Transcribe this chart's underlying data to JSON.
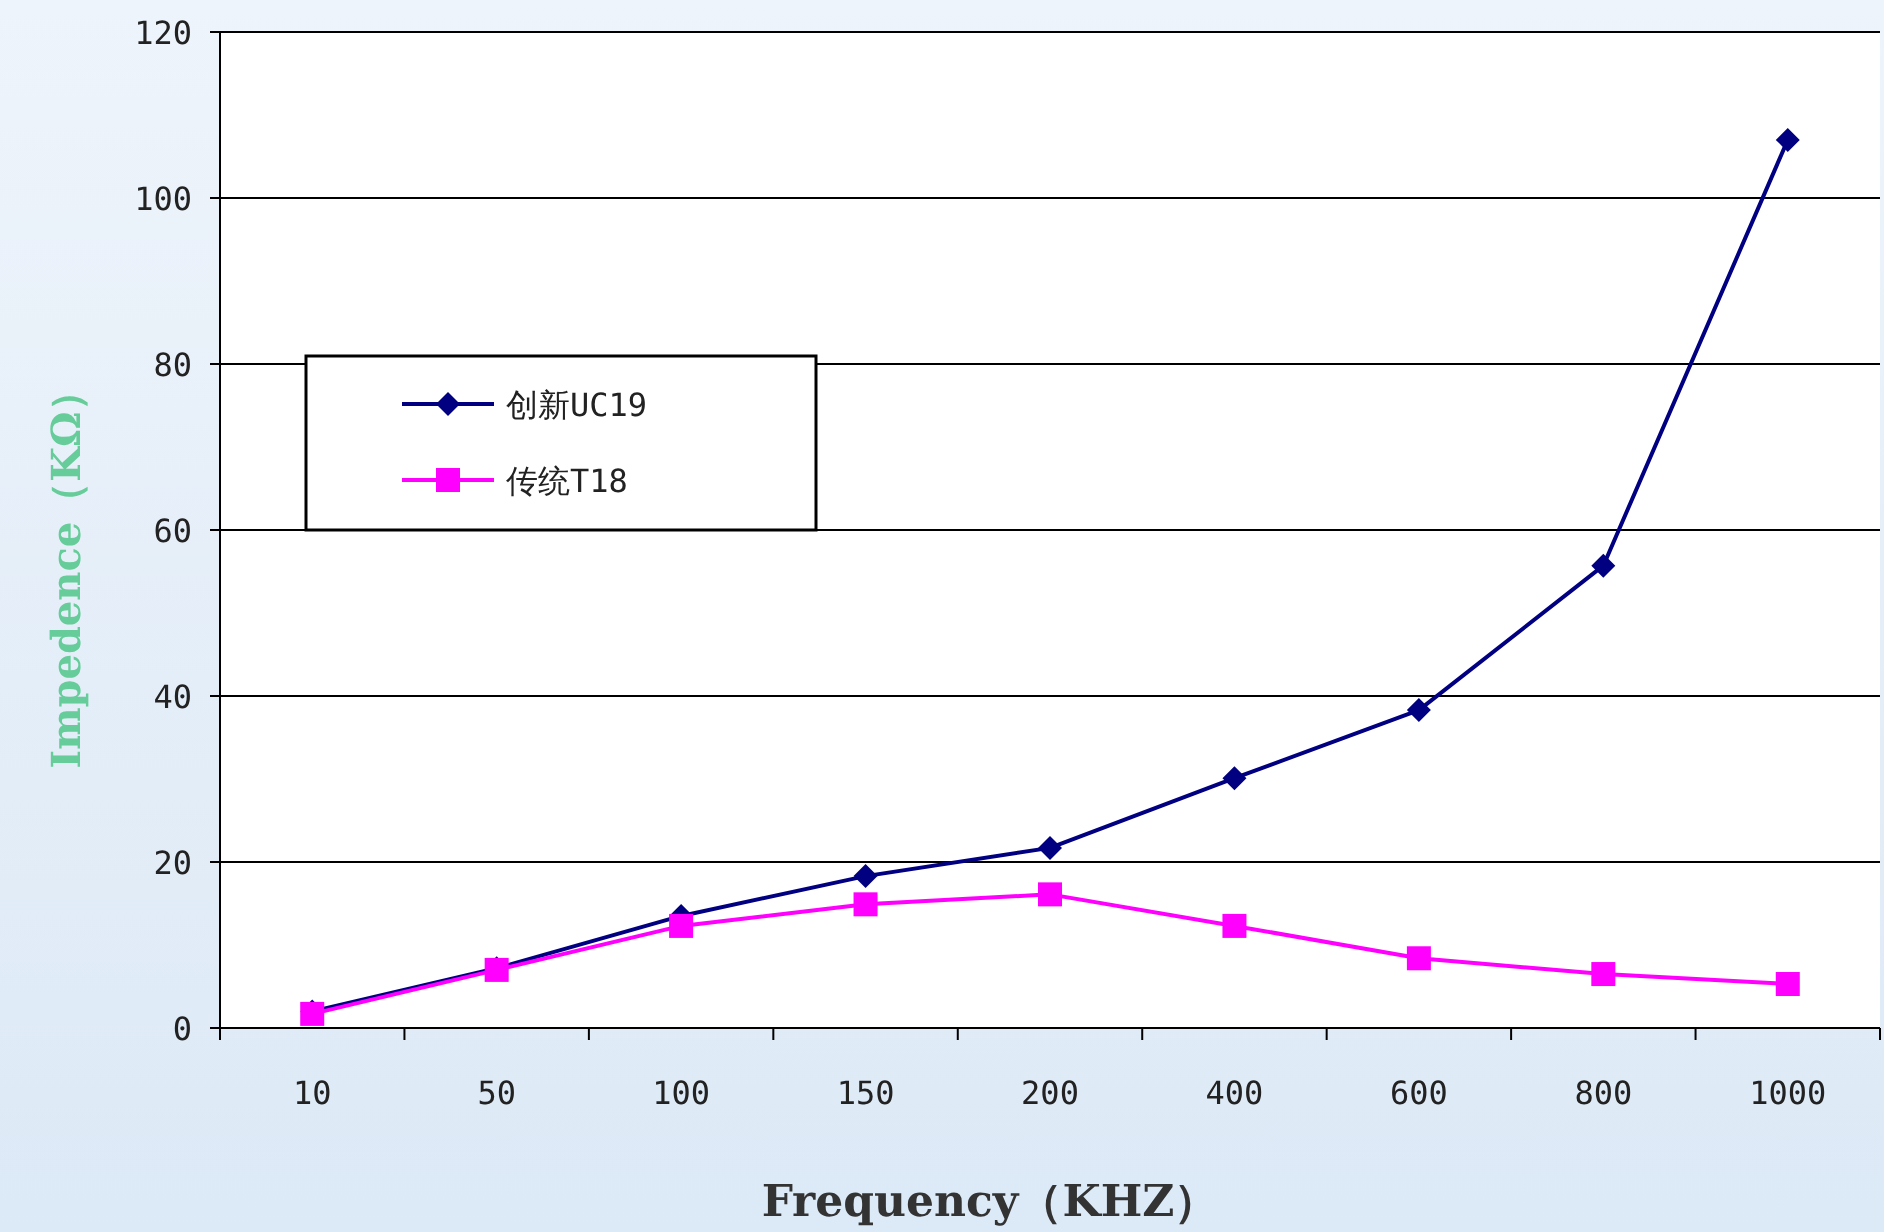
{
  "chart_data": {
    "type": "line",
    "xlabel": "Frequency（KHZ）",
    "ylabel": "Impedence（KΩ）",
    "categories": [
      "10",
      "50",
      "100",
      "150",
      "200",
      "400",
      "600",
      "800",
      "1000"
    ],
    "series": [
      {
        "name": "创新UC19",
        "color": "#000080",
        "marker": "diamond",
        "values": [
          2,
          7.2,
          13.5,
          18.3,
          21.7,
          30.1,
          38.3,
          55.7,
          107
        ]
      },
      {
        "name": "传统T18",
        "color": "#ff00ff",
        "marker": "square",
        "values": [
          1.7,
          7,
          12.3,
          14.9,
          16.1,
          12.3,
          8.4,
          6.5,
          5.3
        ]
      }
    ],
    "ylim": [
      0,
      120
    ],
    "yticks": [
      0,
      20,
      40,
      60,
      80,
      100,
      120
    ],
    "grid": "y",
    "legend": "left"
  }
}
